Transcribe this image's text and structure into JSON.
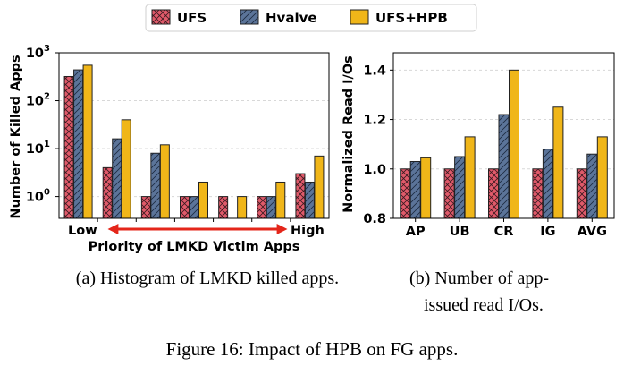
{
  "legend": {
    "items": [
      {
        "label": "UFS",
        "color": "#e05a6a",
        "hatch": "cross"
      },
      {
        "label": "Hvalve",
        "color": "#5b7499",
        "hatch": "diag"
      },
      {
        "label": "UFS+HPB",
        "color": "#f0b619",
        "hatch": "none"
      }
    ]
  },
  "caption": "Figure 16: Impact of HPB on FG apps.",
  "chart_data": [
    {
      "type": "bar",
      "subcaption": "(a) Histogram of LMKD killed apps.",
      "ylabel": "Number of Killed Apps",
      "xlabel": "Priority of LMKD Victim Apps",
      "x_end_labels": {
        "low": "Low",
        "high": "High"
      },
      "yscale": "log",
      "ylim": [
        0.35,
        1000
      ],
      "yticks": [
        {
          "value": 1,
          "base": "10",
          "exp": "0"
        },
        {
          "value": 10,
          "base": "10",
          "exp": "1"
        },
        {
          "value": 100,
          "base": "10",
          "exp": "2"
        },
        {
          "value": 1000,
          "base": "10",
          "exp": "3"
        }
      ],
      "groups": 7,
      "series": [
        {
          "name": "UFS",
          "values": [
            320,
            4,
            1,
            1,
            1,
            1,
            3
          ]
        },
        {
          "name": "Hvalve",
          "values": [
            440,
            16,
            8,
            1,
            0,
            1,
            2
          ]
        },
        {
          "name": "UFS+HPB",
          "values": [
            550,
            40,
            12,
            2,
            1,
            2,
            7
          ]
        }
      ]
    },
    {
      "type": "bar",
      "subcaption": "(b) Number of app-issued read I/Os.",
      "ylabel": "Normalized Read I/Os",
      "categories": [
        "AP",
        "UB",
        "CR",
        "IG",
        "AVG"
      ],
      "ylim": [
        0.8,
        1.47
      ],
      "yticks": [
        "0.8",
        "1.0",
        "1.2",
        "1.4"
      ],
      "series": [
        {
          "name": "UFS",
          "values": [
            1.0,
            1.0,
            1.0,
            1.0,
            1.0
          ]
        },
        {
          "name": "Hvalve",
          "values": [
            1.03,
            1.05,
            1.22,
            1.08,
            1.06
          ]
        },
        {
          "name": "UFS+HPB",
          "values": [
            1.045,
            1.13,
            1.4,
            1.25,
            1.13
          ]
        }
      ]
    }
  ]
}
